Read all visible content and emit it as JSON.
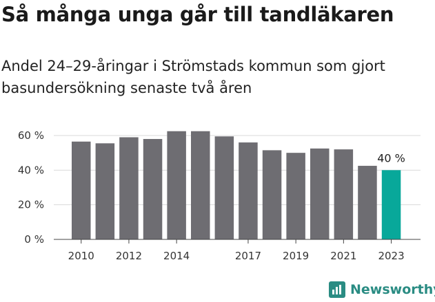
{
  "title": "Så många unga går till tandläkaren",
  "subtitle": "Andel 24–29-åringar i Strömstads kommun som gjort basundersökning senaste två åren",
  "brand": "Newsworthy",
  "colors": {
    "bar": "#6e6d72",
    "highlight": "#08a89a",
    "grid": "#d9d9d9",
    "brand": "#2a8c83"
  },
  "chart_data": {
    "type": "bar",
    "x": [
      2010,
      2011,
      2012,
      2013,
      2014,
      2015,
      2016,
      2017,
      2018,
      2019,
      2020,
      2021,
      2022,
      2023
    ],
    "values": [
      56.5,
      55.5,
      59,
      58,
      62.5,
      62.5,
      59.5,
      56,
      51.5,
      50,
      52.5,
      52,
      42.5,
      40
    ],
    "xticks": [
      "2010",
      "2012",
      "2014",
      "2017",
      "2019",
      "2021",
      "2023"
    ],
    "xtick_years": [
      2010,
      2012,
      2014,
      2017,
      2019,
      2021,
      2023
    ],
    "yticks": [
      "0 %",
      "20 %",
      "40 %",
      "60 %"
    ],
    "ytick_values": [
      0,
      20,
      40,
      60
    ],
    "ylim": [
      0,
      65
    ],
    "highlight_index": 13,
    "data_label": "40 %",
    "grid": true
  }
}
